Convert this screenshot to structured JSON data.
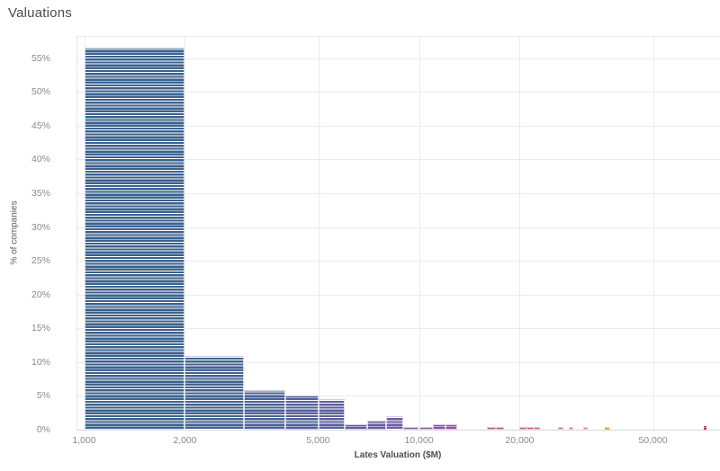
{
  "title": "Valuations",
  "chart_data": {
    "type": "bar",
    "subtype": "histogram",
    "title": "Valuations",
    "xlabel": "Lates Valuation ($M)",
    "ylabel": "% of companies",
    "x_scale": "log",
    "xlim": [
      950,
      79000
    ],
    "ylim": [
      0,
      58
    ],
    "grid": true,
    "legend": "none",
    "stripe_note": "bars are stacks of thin per-company segments separated by white lines",
    "x_axis_ticks": [
      {
        "value": 1000,
        "label": "1,000"
      },
      {
        "value": 2000,
        "label": "2,000"
      },
      {
        "value": 5000,
        "label": "5,000"
      },
      {
        "value": 10000,
        "label": "10,000"
      },
      {
        "value": 20000,
        "label": "20,000"
      },
      {
        "value": 50000,
        "label": "50,000"
      }
    ],
    "y_axis_ticks": [
      {
        "pct": 0,
        "label": "0%"
      },
      {
        "pct": 5,
        "label": "5%"
      },
      {
        "pct": 10,
        "label": "10%"
      },
      {
        "pct": 15,
        "label": "15%"
      },
      {
        "pct": 20,
        "label": "20%"
      },
      {
        "pct": 25,
        "label": "25%"
      },
      {
        "pct": 30,
        "label": "30%"
      },
      {
        "pct": 35,
        "label": "35%"
      },
      {
        "pct": 40,
        "label": "40%"
      },
      {
        "pct": 45,
        "label": "45%"
      },
      {
        "pct": 50,
        "label": "50%"
      },
      {
        "pct": 55,
        "label": "55%"
      }
    ],
    "bins": [
      {
        "x0": 1000,
        "x1": 2000,
        "pct": 56.5,
        "color": "#3b618e"
      },
      {
        "x0": 2000,
        "x1": 3000,
        "pct": 10.9,
        "color": "#40628f"
      },
      {
        "x0": 3000,
        "x1": 4000,
        "pct": 5.8,
        "color": "#4a6196"
      },
      {
        "x0": 4000,
        "x1": 5000,
        "pct": 5.1,
        "color": "#52609a"
      },
      {
        "x0": 5000,
        "x1": 6000,
        "pct": 4.5,
        "color": "#5a5f9d"
      },
      {
        "x0": 6000,
        "x1": 7000,
        "pct": 0.75,
        "color": "#615da0"
      },
      {
        "x0": 7000,
        "x1": 8000,
        "pct": 1.35,
        "color": "#685ba2"
      },
      {
        "x0": 8000,
        "x1": 9000,
        "pct": 2.0,
        "color": "#7059a4"
      },
      {
        "x0": 9000,
        "x1": 10000,
        "pct": 0.4,
        "color": "#7756a4"
      },
      {
        "x0": 10000,
        "x1": 11000,
        "pct": 0.4,
        "color": "#7f54a5"
      },
      {
        "x0": 11000,
        "x1": 12000,
        "pct": 0.75,
        "color": "#8752a4"
      },
      {
        "x0": 12000,
        "x1": 13000,
        "pct": 0.75,
        "color": "#8f50a2"
      },
      {
        "x0": 16000,
        "x1": 17000,
        "pct": 0.4,
        "color": "#a54c9a"
      },
      {
        "x0": 17000,
        "x1": 18000,
        "pct": 0.4,
        "color": "#aa4b96"
      },
      {
        "x0": 20000,
        "x1": 21000,
        "pct": 0.4,
        "color": "#bd4d82"
      },
      {
        "x0": 21000,
        "x1": 22000,
        "pct": 0.4,
        "color": "#c35179"
      },
      {
        "x0": 22000,
        "x1": 23000,
        "pct": 0.4,
        "color": "#c85570"
      },
      {
        "x0": 26000,
        "x1": 27000,
        "pct": 0.4,
        "color": "#d95d66"
      },
      {
        "x0": 28000,
        "x1": 29000,
        "pct": 0.4,
        "color": "#e16562"
      },
      {
        "x0": 31000,
        "x1": 32000,
        "pct": 0.4,
        "color": "#e87059"
      },
      {
        "x0": 36000,
        "x1": 37000,
        "pct": 0.4,
        "color": "#f3a354"
      },
      {
        "x0": 71000,
        "x1": 72000,
        "pct": 0.5,
        "color": "#b73253"
      }
    ]
  }
}
